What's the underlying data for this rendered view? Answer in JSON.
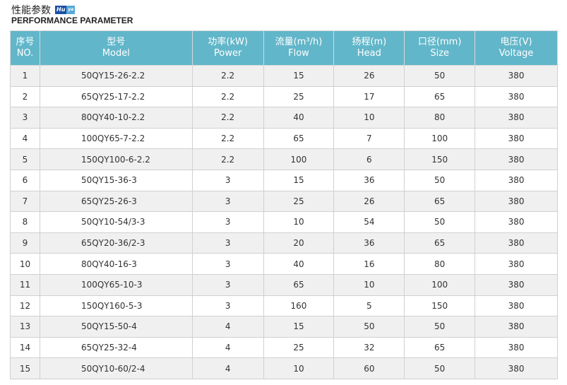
{
  "title_cn": "性能参数",
  "logo": {
    "part1": "Hu",
    "part2": "ya"
  },
  "title_en": "PERFORMANCE PARAMETER",
  "headers": [
    {
      "cn": "序号",
      "en": "NO."
    },
    {
      "cn": "型号",
      "en": "Model"
    },
    {
      "cn": "功率(kW)",
      "en": "Power"
    },
    {
      "cn": "流量(m³/h)",
      "en": "Flow"
    },
    {
      "cn": "扬程(m)",
      "en": "Head"
    },
    {
      "cn": "口径(mm)",
      "en": "Size"
    },
    {
      "cn": "电压(V)",
      "en": "Voltage"
    }
  ],
  "rows": [
    [
      "1",
      "50QY15-26-2.2",
      "2.2",
      "15",
      "26",
      "50",
      "380"
    ],
    [
      "2",
      "65QY25-17-2.2",
      "2.2",
      "25",
      "17",
      "65",
      "380"
    ],
    [
      "3",
      "80QY40-10-2.2",
      "2.2",
      "40",
      "10",
      "80",
      "380"
    ],
    [
      "4",
      "100QY65-7-2.2",
      "2.2",
      "65",
      "7",
      "100",
      "380"
    ],
    [
      "5",
      "150QY100-6-2.2",
      "2.2",
      "100",
      "6",
      "150",
      "380"
    ],
    [
      "6",
      "50QY15-36-3",
      "3",
      "15",
      "36",
      "50",
      "380"
    ],
    [
      "7",
      "65QY25-26-3",
      "3",
      "25",
      "26",
      "65",
      "380"
    ],
    [
      "8",
      "50QY10-54/3-3",
      "3",
      "10",
      "54",
      "50",
      "380"
    ],
    [
      "9",
      "65QY20-36/2-3",
      "3",
      "20",
      "36",
      "65",
      "380"
    ],
    [
      "10",
      "80QY40-16-3",
      "3",
      "40",
      "16",
      "80",
      "380"
    ],
    [
      "11",
      "100QY65-10-3",
      "3",
      "65",
      "10",
      "100",
      "380"
    ],
    [
      "12",
      "150QY160-5-3",
      "3",
      "160",
      "5",
      "150",
      "380"
    ],
    [
      "13",
      "50QY15-50-4",
      "4",
      "15",
      "50",
      "50",
      "380"
    ],
    [
      "14",
      "65QY25-32-4",
      "4",
      "25",
      "32",
      "65",
      "380"
    ],
    [
      "15",
      "50QY10-60/2-4",
      "4",
      "10",
      "60",
      "50",
      "380"
    ]
  ]
}
